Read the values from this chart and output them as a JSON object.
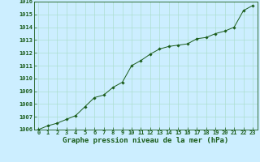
{
  "x": [
    0,
    1,
    2,
    3,
    4,
    5,
    6,
    7,
    8,
    9,
    10,
    11,
    12,
    13,
    14,
    15,
    16,
    17,
    18,
    19,
    20,
    21,
    22,
    23
  ],
  "y": [
    1006.0,
    1006.3,
    1006.5,
    1006.8,
    1007.1,
    1007.8,
    1008.5,
    1008.7,
    1009.3,
    1009.7,
    1011.0,
    1011.4,
    1011.9,
    1012.3,
    1012.5,
    1012.6,
    1012.7,
    1013.1,
    1013.2,
    1013.5,
    1013.7,
    1014.0,
    1015.3,
    1015.7
  ],
  "ylim": [
    1006,
    1016
  ],
  "yticks": [
    1006,
    1007,
    1008,
    1009,
    1010,
    1011,
    1012,
    1013,
    1014,
    1015,
    1016
  ],
  "xticks": [
    0,
    1,
    2,
    3,
    4,
    5,
    6,
    7,
    8,
    9,
    10,
    11,
    12,
    13,
    14,
    15,
    16,
    17,
    18,
    19,
    20,
    21,
    22,
    23
  ],
  "xlabel": "Graphe pression niveau de la mer (hPa)",
  "line_color": "#1a5c1a",
  "marker": "D",
  "marker_size": 1.8,
  "bg_color": "#cceeff",
  "grid_color": "#aaddcc",
  "text_color": "#1a5c1a",
  "xlabel_color": "#1a5c1a",
  "tick_label_color": "#1a5c1a",
  "axis_label_fontsize": 6.5,
  "tick_fontsize": 5.0
}
